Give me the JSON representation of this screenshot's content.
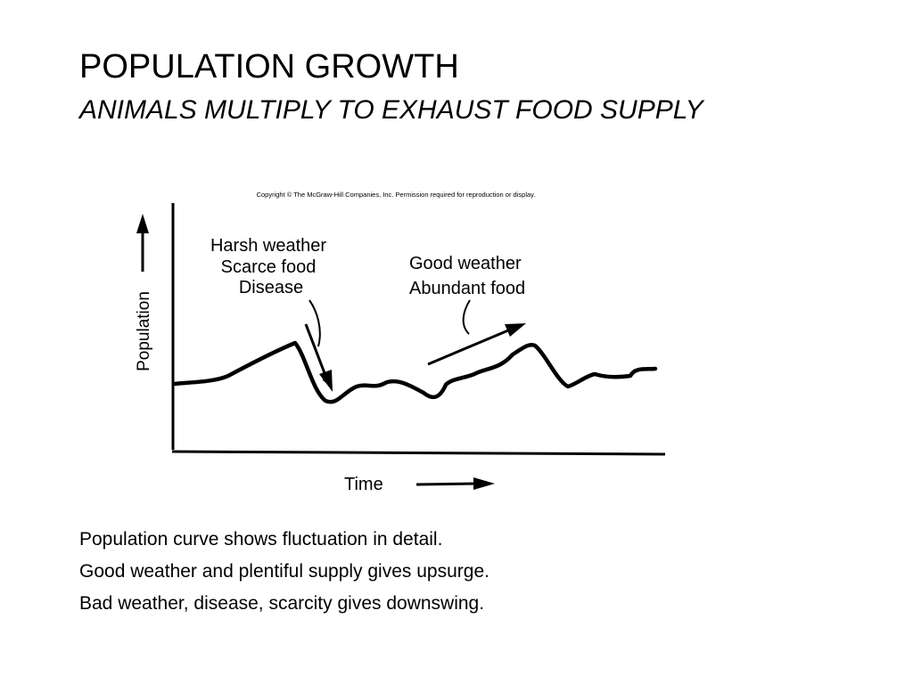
{
  "slide": {
    "title": "POPULATION GROWTH",
    "subtitle": "ANIMALS MULTIPLY TO EXHAUST FOOD SUPPLY"
  },
  "figure": {
    "copyright": "Copyright © The McGraw-Hill Companies, Inc. Permission required for reproduction or display.",
    "y_axis_label": "Population",
    "x_axis_label": "Time",
    "annotation_bad": [
      "Harsh weather",
      "Scarce food",
      "Disease"
    ],
    "annotation_good": [
      "Good weather",
      "Abundant food"
    ]
  },
  "notes": [
    "Population curve shows fluctuation in detail.",
    "Good weather and plentiful supply gives upsurge.",
    "Bad weather, disease, scarcity gives downswing."
  ]
}
